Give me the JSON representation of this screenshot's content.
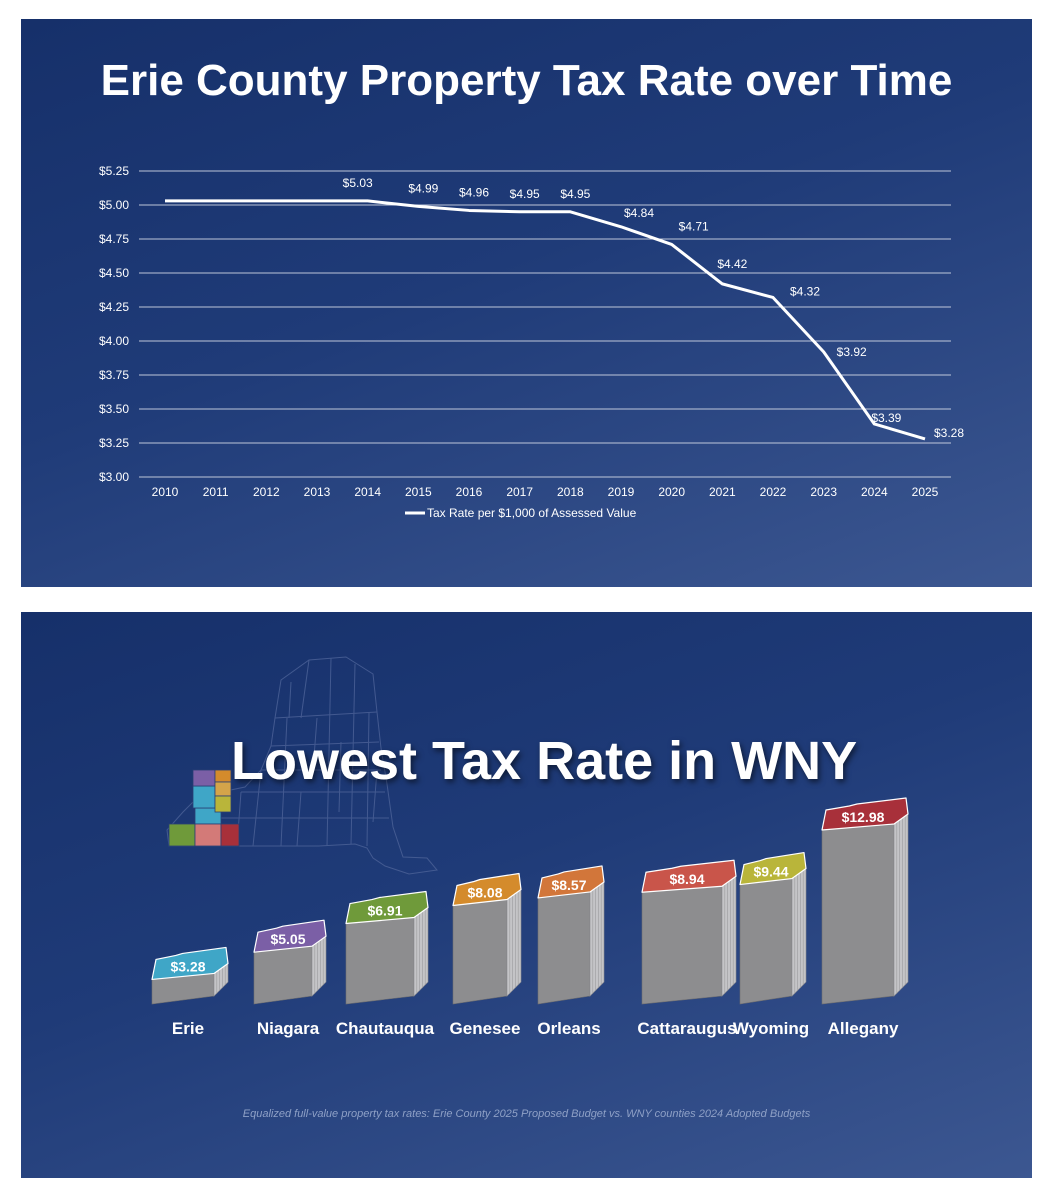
{
  "slide1": {
    "title": "Erie County Property Tax Rate over Time"
  },
  "chart_data": [
    {
      "type": "line",
      "title": "Erie County Property Tax Rate over Time",
      "x": [
        "2010",
        "2011",
        "2012",
        "2013",
        "2014",
        "2015",
        "2016",
        "2017",
        "2018",
        "2019",
        "2020",
        "2021",
        "2022",
        "2023",
        "2024",
        "2025"
      ],
      "series": [
        {
          "name": "Tax Rate per $1,000 of Assessed Value",
          "values": [
            5.03,
            5.03,
            5.03,
            5.03,
            5.03,
            4.99,
            4.96,
            4.95,
            4.95,
            4.84,
            4.71,
            4.42,
            4.32,
            3.92,
            3.39,
            3.28
          ],
          "data_labels": [
            "",
            "",
            "",
            "",
            "$5.03",
            "$4.99",
            "$4.96",
            "$4.95",
            "$4.95",
            "$4.84",
            "$4.71",
            "$4.42",
            "$4.32",
            "$3.92",
            "$3.39",
            "$3.28"
          ]
        }
      ],
      "y_ticks": [
        "$3.00",
        "$3.25",
        "$3.50",
        "$3.75",
        "$4.00",
        "$4.25",
        "$4.50",
        "$4.75",
        "$5.00",
        "$5.25"
      ],
      "ylim": [
        3.0,
        5.25
      ],
      "grid": true,
      "legend_position": "bottom",
      "colors": {
        "line": "#ffffff",
        "grid": "#d9deea",
        "text": "#ffffff"
      }
    },
    {
      "type": "bar",
      "title": "Lowest Tax Rate in WNY",
      "categories": [
        "Erie",
        "Niagara",
        "Chautauqua",
        "Genesee",
        "Orleans",
        "Cattaraugus",
        "Wyoming",
        "Allegany"
      ],
      "values": [
        3.28,
        5.05,
        6.91,
        8.08,
        8.57,
        8.94,
        9.44,
        12.98
      ],
      "value_labels": [
        "$3.28",
        "$5.05",
        "$6.91",
        "$8.08",
        "$8.57",
        "$8.94",
        "$9.44",
        "$12.98"
      ],
      "colors": [
        "#3fa6c7",
        "#7b5fa6",
        "#6f9a3a",
        "#d48b2c",
        "#d2763a",
        "#c9554a",
        "#b9b53a",
        "#a8303a"
      ]
    }
  ],
  "slide2": {
    "title": "Lowest Tax Rate in WNY",
    "footnote": "Equalized full-value property tax rates: Erie County 2025 Proposed Budget vs. WNY counties 2024 Adopted Budgets",
    "map_icon": "new-york-state-map-icon"
  }
}
